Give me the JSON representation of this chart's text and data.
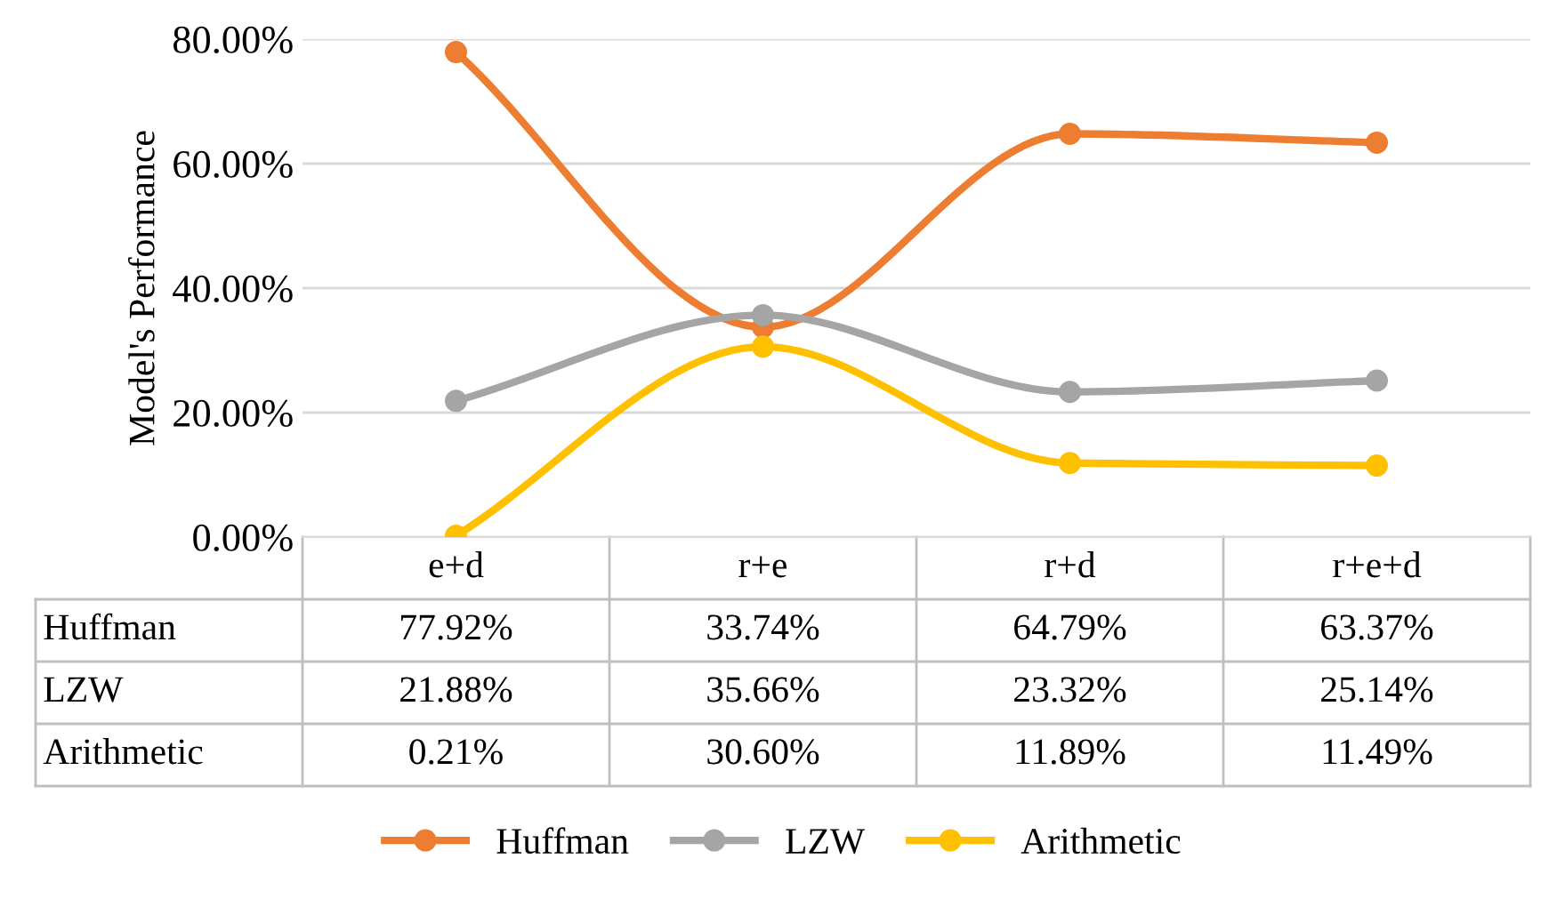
{
  "chart_data": {
    "type": "line",
    "ylabel": "Model's Performance",
    "categories": [
      "e+d",
      "r+e",
      "r+d",
      "r+e+d"
    ],
    "series": [
      {
        "name": "Huffman",
        "color": "#ed7d31",
        "values": [
          77.92,
          33.74,
          64.79,
          63.37
        ],
        "value_labels": [
          "77.92%",
          "33.74%",
          "64.79%",
          "63.37%"
        ]
      },
      {
        "name": "LZW",
        "color": "#a5a5a5",
        "values": [
          21.88,
          35.66,
          23.32,
          25.14
        ],
        "value_labels": [
          "21.88%",
          "35.66%",
          "23.32%",
          "25.14%"
        ]
      },
      {
        "name": "Arithmetic",
        "color": "#ffc000",
        "values": [
          0.21,
          30.6,
          11.89,
          11.49
        ],
        "value_labels": [
          "0.21%",
          "30.60%",
          "11.89%",
          "11.49%"
        ]
      }
    ],
    "ylim": [
      0,
      80
    ],
    "yticks": [
      {
        "value": 0,
        "label": "0.00%"
      },
      {
        "value": 20,
        "label": "20.00%"
      },
      {
        "value": 40,
        "label": "40.00%"
      },
      {
        "value": 60,
        "label": "60.00%"
      },
      {
        "value": 80,
        "label": "80.00%"
      }
    ],
    "grid": "y",
    "legend": "bottom",
    "marker": "circle",
    "line_style": "solid",
    "tick_labels": "y"
  }
}
